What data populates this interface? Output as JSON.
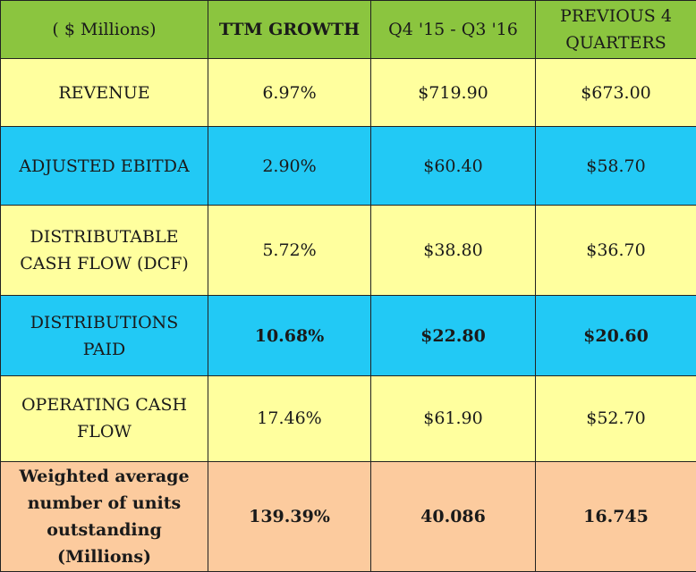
{
  "header": {
    "col1": "( $ Millions)",
    "col2": "TTM GROWTH",
    "col3": "Q4 '15 - Q3 '16",
    "col4": "PREVIOUS 4\nQUARTERS"
  },
  "rows": [
    {
      "label": "REVENUE",
      "growth": "6.97%",
      "current": "$719.90",
      "previous": "$673.00"
    },
    {
      "label": "ADJUSTED EBITDA",
      "growth": "2.90%",
      "current": "$60.40",
      "previous": "$58.70"
    },
    {
      "label": "DISTRIBUTABLE\nCASH FLOW (DCF)",
      "growth": "5.72%",
      "current": "$38.80",
      "previous": "$36.70"
    },
    {
      "label": "DISTRIBUTIONS\nPAID",
      "growth": "10.68%",
      "current": "$22.80",
      "previous": "$20.60"
    },
    {
      "label": "OPERATING CASH\nFLOW",
      "growth": "17.46%",
      "current": "$61.90",
      "previous": "$52.70"
    },
    {
      "label": "Weighted average\nnumber of units\noutstanding\n(Millions)",
      "growth": "139.39%",
      "current": "40.086",
      "previous": "16.745"
    }
  ],
  "colors": {
    "header": "#8bc53f",
    "yellow": "#ffff9e",
    "blue": "#22c9f5",
    "peach": "#fccb9e"
  }
}
